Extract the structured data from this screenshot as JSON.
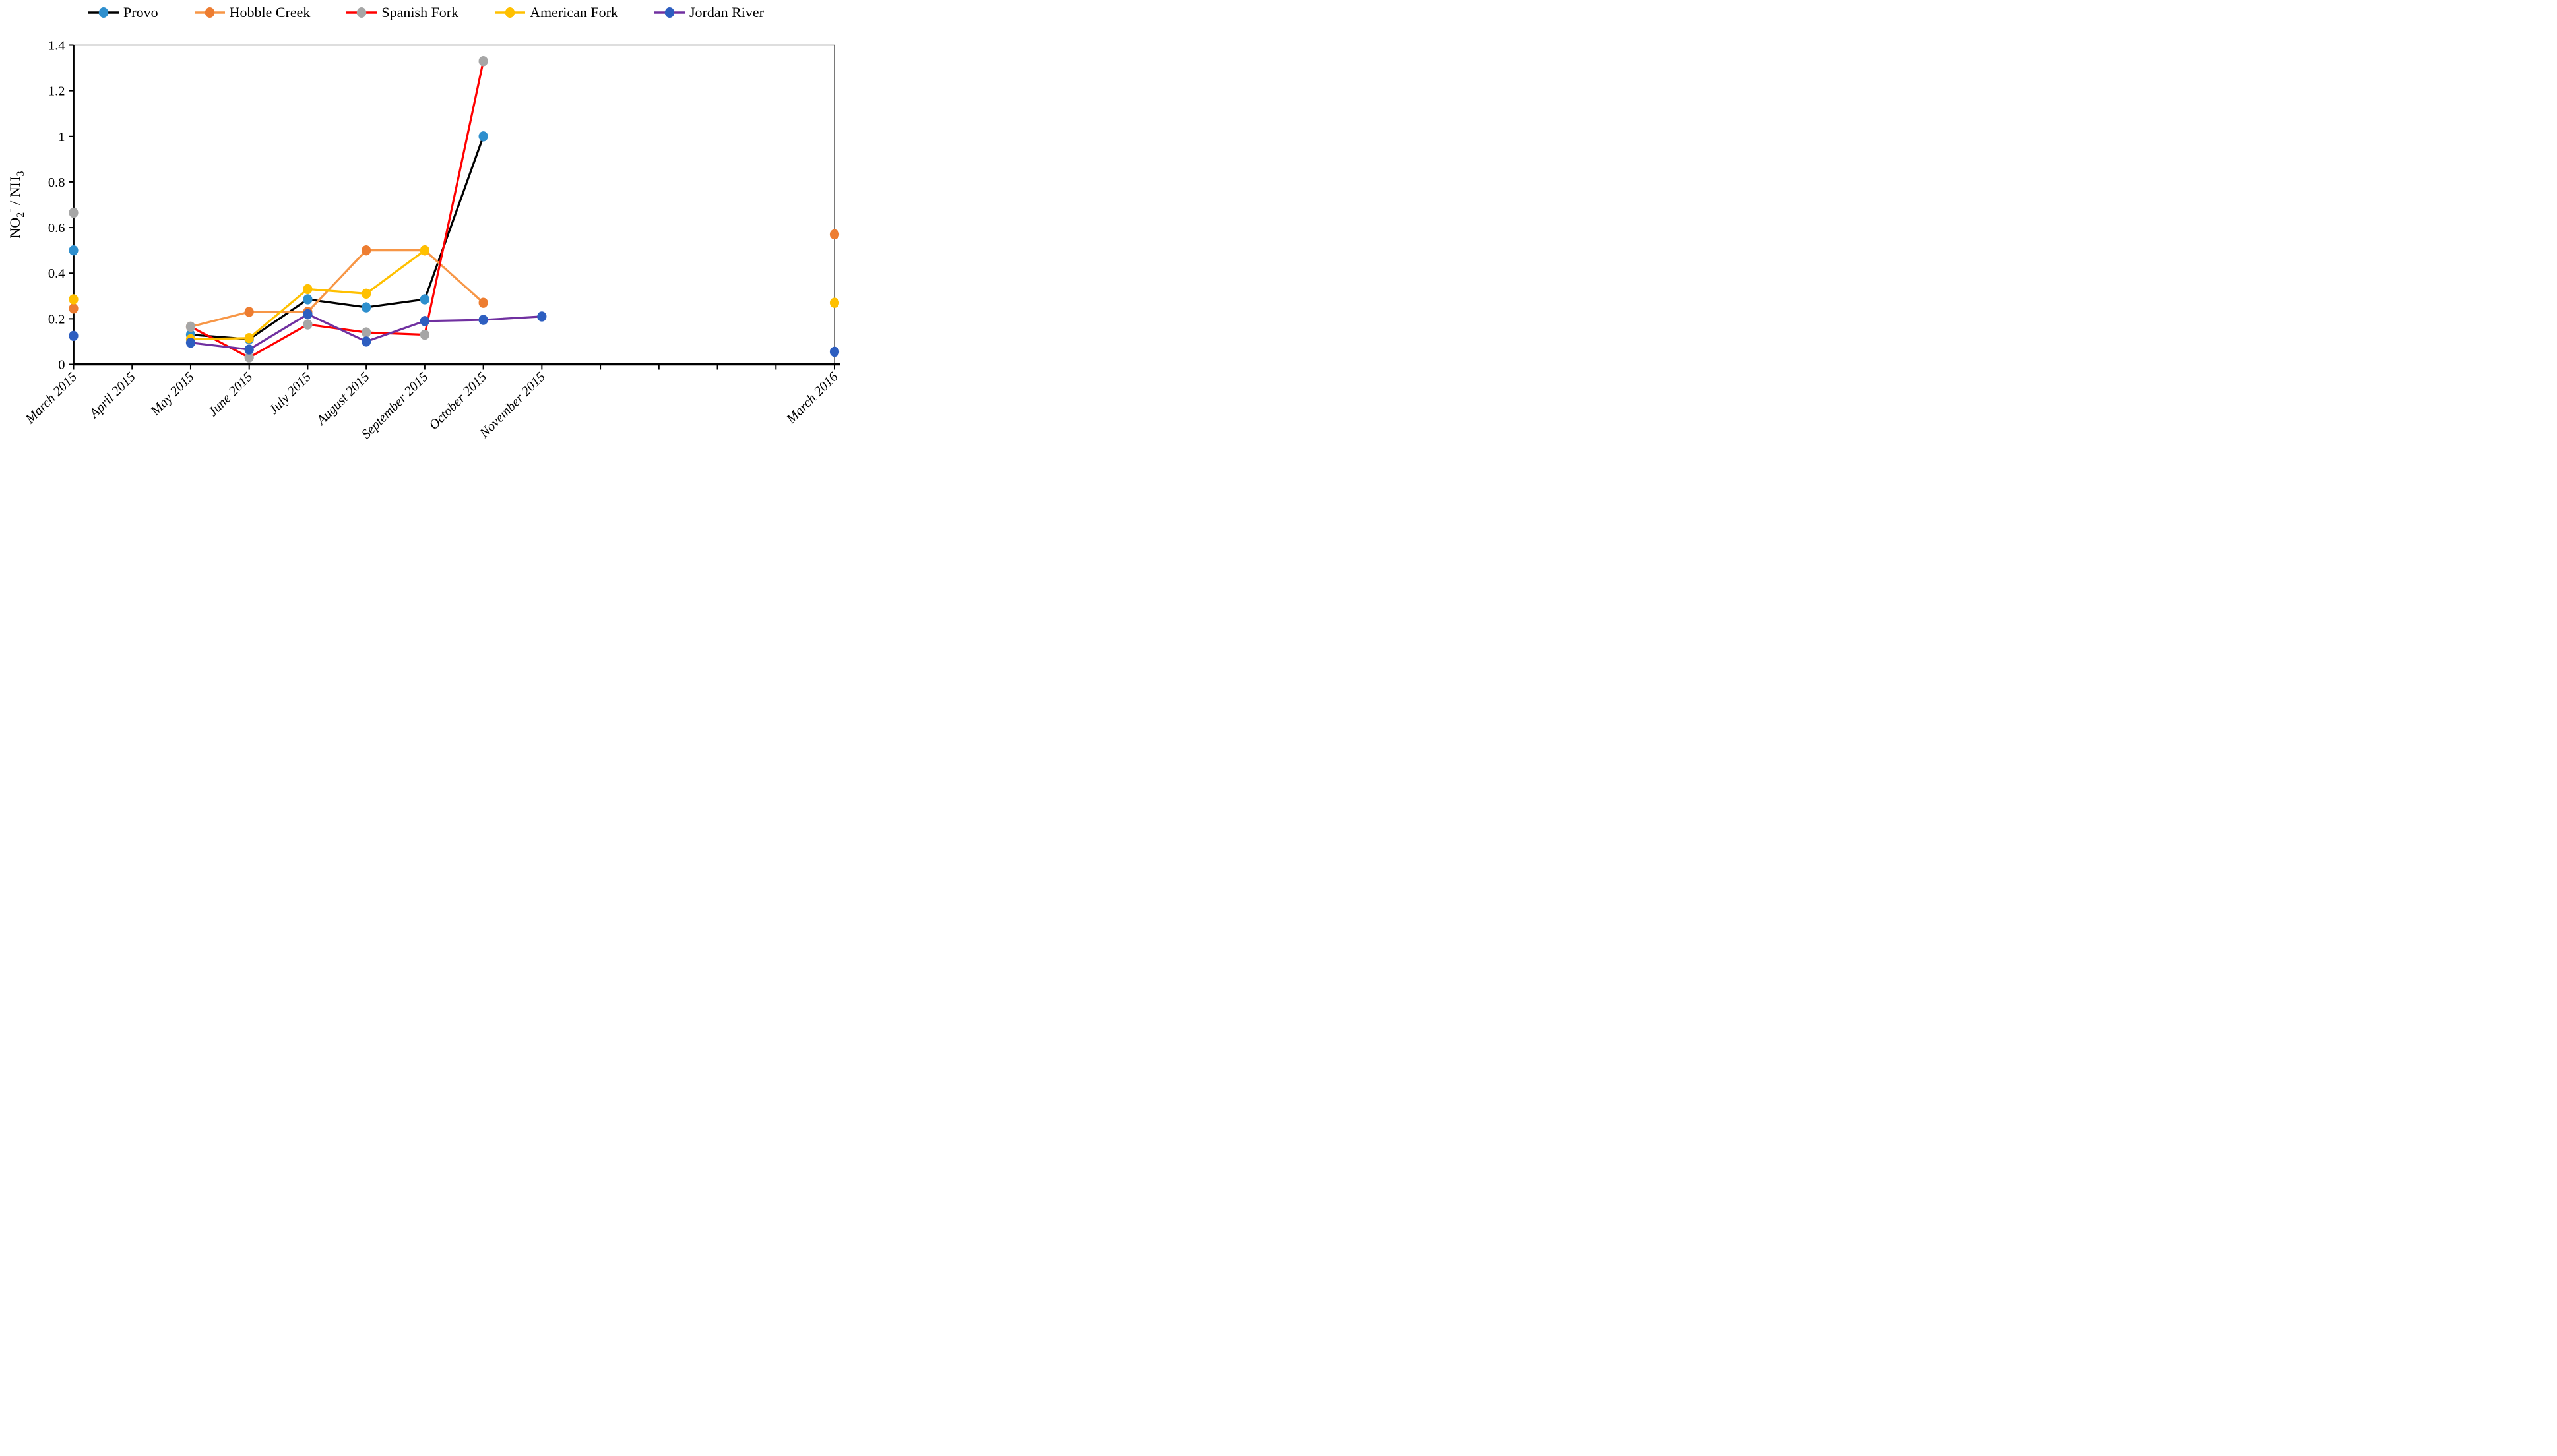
{
  "chart_data": {
    "type": "line",
    "title": "",
    "ylabel": "NO2- / NH3",
    "ylabel_parts": {
      "base": "NO",
      "sub": "2",
      "sup": "-",
      "mid": " / NH",
      "sub2": "3"
    },
    "ylim": [
      0,
      1.4
    ],
    "y_ticks": [
      "0",
      "0.2",
      "0.4",
      "0.6",
      "0.8",
      "1",
      "1.2",
      "1.4"
    ],
    "x_tick_labels": [
      "March 2015",
      "April 2015",
      "May 2015",
      "June 2015",
      "July 2015",
      "August 2015",
      "September 2015",
      "October 2015",
      "November 2015",
      "",
      "",
      "",
      "",
      "March 2016"
    ],
    "grid": false,
    "legend_position": "top",
    "series": [
      {
        "name": "Provo",
        "line_color": "#000000",
        "marker_color": "#2E8FCE",
        "values": [
          0.5,
          null,
          0.13,
          0.11,
          0.285,
          0.25,
          0.285,
          1.0,
          null,
          null,
          null,
          null,
          null,
          null
        ]
      },
      {
        "name": "Hobble Creek",
        "line_color": "#F79646",
        "marker_color": "#ED7D31",
        "values": [
          0.245,
          null,
          0.165,
          0.23,
          0.23,
          0.5,
          0.5,
          0.27,
          null,
          null,
          null,
          null,
          null,
          0.57
        ]
      },
      {
        "name": "Spanish Fork",
        "line_color": "#FF0000",
        "marker_color": "#A6A6A6",
        "values": [
          0.665,
          null,
          0.165,
          0.03,
          0.175,
          0.14,
          0.13,
          1.33,
          null,
          null,
          null,
          null,
          null,
          null
        ]
      },
      {
        "name": "American Fork",
        "line_color": "#FFC000",
        "marker_color": "#FFC000",
        "values": [
          0.285,
          null,
          0.11,
          0.115,
          0.33,
          0.31,
          0.5,
          null,
          null,
          null,
          null,
          null,
          null,
          0.27
        ]
      },
      {
        "name": "Jordan River",
        "line_color": "#7030A0",
        "marker_color": "#2D5EC0",
        "values": [
          0.125,
          null,
          0.095,
          0.065,
          0.22,
          0.1,
          0.19,
          0.195,
          0.21,
          null,
          null,
          null,
          null,
          0.055
        ]
      }
    ]
  },
  "style": {
    "background": "#FFFFFF",
    "axis_color": "#000000",
    "top_border_color": "#7F7F7F",
    "right_border_color": "#404040",
    "text_color": "#000000"
  }
}
